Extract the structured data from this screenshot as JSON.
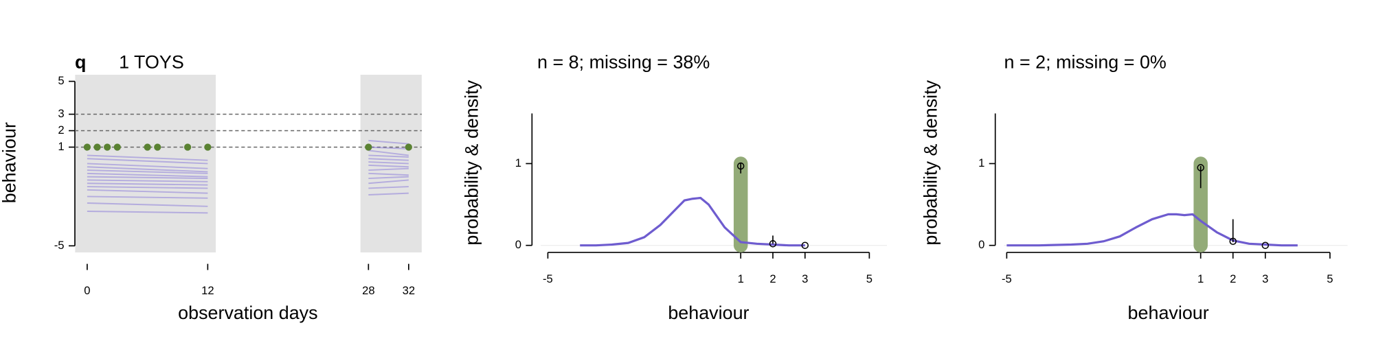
{
  "chart_data": [
    {
      "type": "spaghetti",
      "panel_letter": "q",
      "title": "1 TOYS",
      "ylabel": "behaviour",
      "xlabel": "observation days",
      "xlim": [
        -1.2,
        33.3
      ],
      "xticks": [
        0,
        12,
        28,
        32
      ],
      "ylim": [
        -5.4,
        5.4
      ],
      "yticks": [
        -5,
        1,
        2,
        3,
        5
      ],
      "shaded_regions": [
        [
          -1.2,
          12.8
        ],
        [
          27.2,
          33.3
        ]
      ],
      "shade_color": "#e3e3e3",
      "hlines": [
        1,
        2,
        3
      ],
      "line_color": "#7b68d6",
      "series": [
        {
          "x": [
            0,
            12
          ],
          "values": [
            0.5,
            0.2
          ]
        },
        {
          "x": [
            0,
            12
          ],
          "values": [
            0.3,
            0.0
          ]
        },
        {
          "x": [
            0,
            12
          ],
          "values": [
            0.0,
            -0.3
          ]
        },
        {
          "x": [
            0,
            12
          ],
          "values": [
            -0.2,
            -0.5
          ]
        },
        {
          "x": [
            0,
            12
          ],
          "values": [
            -0.4,
            -0.6
          ]
        },
        {
          "x": [
            0,
            12
          ],
          "values": [
            -0.6,
            -0.8
          ]
        },
        {
          "x": [
            0,
            12
          ],
          "values": [
            -0.8,
            -0.9
          ]
        },
        {
          "x": [
            0,
            12
          ],
          "values": [
            -1.0,
            -1.1
          ]
        },
        {
          "x": [
            0,
            12
          ],
          "values": [
            -1.2,
            -1.3
          ]
        },
        {
          "x": [
            0,
            12
          ],
          "values": [
            -1.4,
            -1.5
          ]
        },
        {
          "x": [
            0,
            12
          ],
          "values": [
            -1.6,
            -1.8
          ]
        },
        {
          "x": [
            0,
            12
          ],
          "values": [
            -2.0,
            -2.1
          ]
        },
        {
          "x": [
            0,
            12
          ],
          "values": [
            -2.4,
            -2.6
          ]
        },
        {
          "x": [
            0,
            12
          ],
          "values": [
            -2.9,
            -3.0
          ]
        },
        {
          "x": [
            28,
            32
          ],
          "values": [
            1.4,
            1.2
          ]
        },
        {
          "x": [
            28,
            32
          ],
          "values": [
            1.0,
            0.9
          ]
        },
        {
          "x": [
            28,
            32
          ],
          "values": [
            0.8,
            0.5
          ]
        },
        {
          "x": [
            28,
            32
          ],
          "values": [
            0.5,
            0.4
          ]
        },
        {
          "x": [
            28,
            32
          ],
          "values": [
            0.3,
            0.2
          ]
        },
        {
          "x": [
            28,
            32
          ],
          "values": [
            0.1,
            0.0
          ]
        },
        {
          "x": [
            28,
            32
          ],
          "values": [
            -0.1,
            -0.2
          ]
        },
        {
          "x": [
            28,
            32
          ],
          "values": [
            -0.4,
            -0.3
          ]
        },
        {
          "x": [
            28,
            32
          ],
          "values": [
            -0.6,
            -0.7
          ]
        },
        {
          "x": [
            28,
            32
          ],
          "values": [
            -0.9,
            -0.8
          ]
        },
        {
          "x": [
            28,
            32
          ],
          "values": [
            -1.2,
            -1.0
          ]
        },
        {
          "x": [
            28,
            32
          ],
          "values": [
            -1.5,
            -1.4
          ]
        },
        {
          "x": [
            28,
            32
          ],
          "values": [
            -1.9,
            -1.8
          ]
        }
      ],
      "points": {
        "x": [
          0,
          1,
          2,
          3,
          6,
          7,
          10,
          12,
          28,
          32
        ],
        "values": [
          1,
          1,
          1,
          1,
          1,
          1,
          1,
          1,
          1,
          1
        ],
        "color": "#5a8232"
      }
    },
    {
      "type": "density",
      "title": "n = 8; missing = 38%",
      "ylabel": "probability & density",
      "xlabel": "behaviour",
      "xlim": [
        -5,
        5
      ],
      "xticks": [
        -5,
        1,
        2,
        3,
        5
      ],
      "ylim": [
        -0.086,
        1.613
      ],
      "yticks": [
        0,
        1
      ],
      "density": {
        "x": [
          -4,
          -3.5,
          -3,
          -2.5,
          -2,
          -1.5,
          -1,
          -0.75,
          -0.5,
          -0.25,
          0,
          0.5,
          1,
          1.5,
          2,
          2.5,
          3
        ],
        "values": [
          0,
          0,
          0.01,
          0.03,
          0.1,
          0.25,
          0.45,
          0.55,
          0.57,
          0.58,
          0.5,
          0.22,
          0.04,
          0.02,
          0.01,
          0,
          0
        ],
        "color": "#6e5ccf"
      },
      "observed": {
        "x": [
          1
        ],
        "values": [
          1
        ],
        "color": "#93ab78"
      },
      "estimates": {
        "x": [
          1,
          2,
          3
        ],
        "values": [
          0.97,
          0.02,
          0
        ],
        "interval": [
          [
            0.88,
            1.0
          ],
          [
            0.02,
            0.12
          ],
          [
            0,
            0
          ]
        ]
      }
    },
    {
      "type": "density",
      "title": "n = 2; missing = 0%",
      "ylabel": "probability & density",
      "xlabel": "behaviour",
      "xlim": [
        -5,
        5
      ],
      "xticks": [
        -5,
        1,
        2,
        3,
        5
      ],
      "ylim": [
        -0.086,
        1.613
      ],
      "yticks": [
        0,
        1
      ],
      "density": {
        "x": [
          -5,
          -4,
          -3,
          -2.5,
          -2,
          -1.5,
          -1,
          -0.5,
          0,
          0.25,
          0.5,
          0.75,
          1,
          1.5,
          2,
          2.5,
          3,
          3.5,
          4
        ],
        "values": [
          0,
          0,
          0.01,
          0.02,
          0.05,
          0.11,
          0.22,
          0.32,
          0.38,
          0.38,
          0.37,
          0.38,
          0.3,
          0.16,
          0.06,
          0.02,
          0.01,
          0,
          0
        ],
        "color": "#6e5ccf"
      },
      "observed": {
        "x": [
          1
        ],
        "values": [
          1
        ],
        "color": "#93ab78"
      },
      "estimates": {
        "x": [
          1,
          2,
          3
        ],
        "values": [
          0.95,
          0.05,
          0
        ],
        "interval": [
          [
            0.7,
            0.97
          ],
          [
            0.04,
            0.32
          ],
          [
            0,
            0
          ]
        ]
      }
    }
  ]
}
